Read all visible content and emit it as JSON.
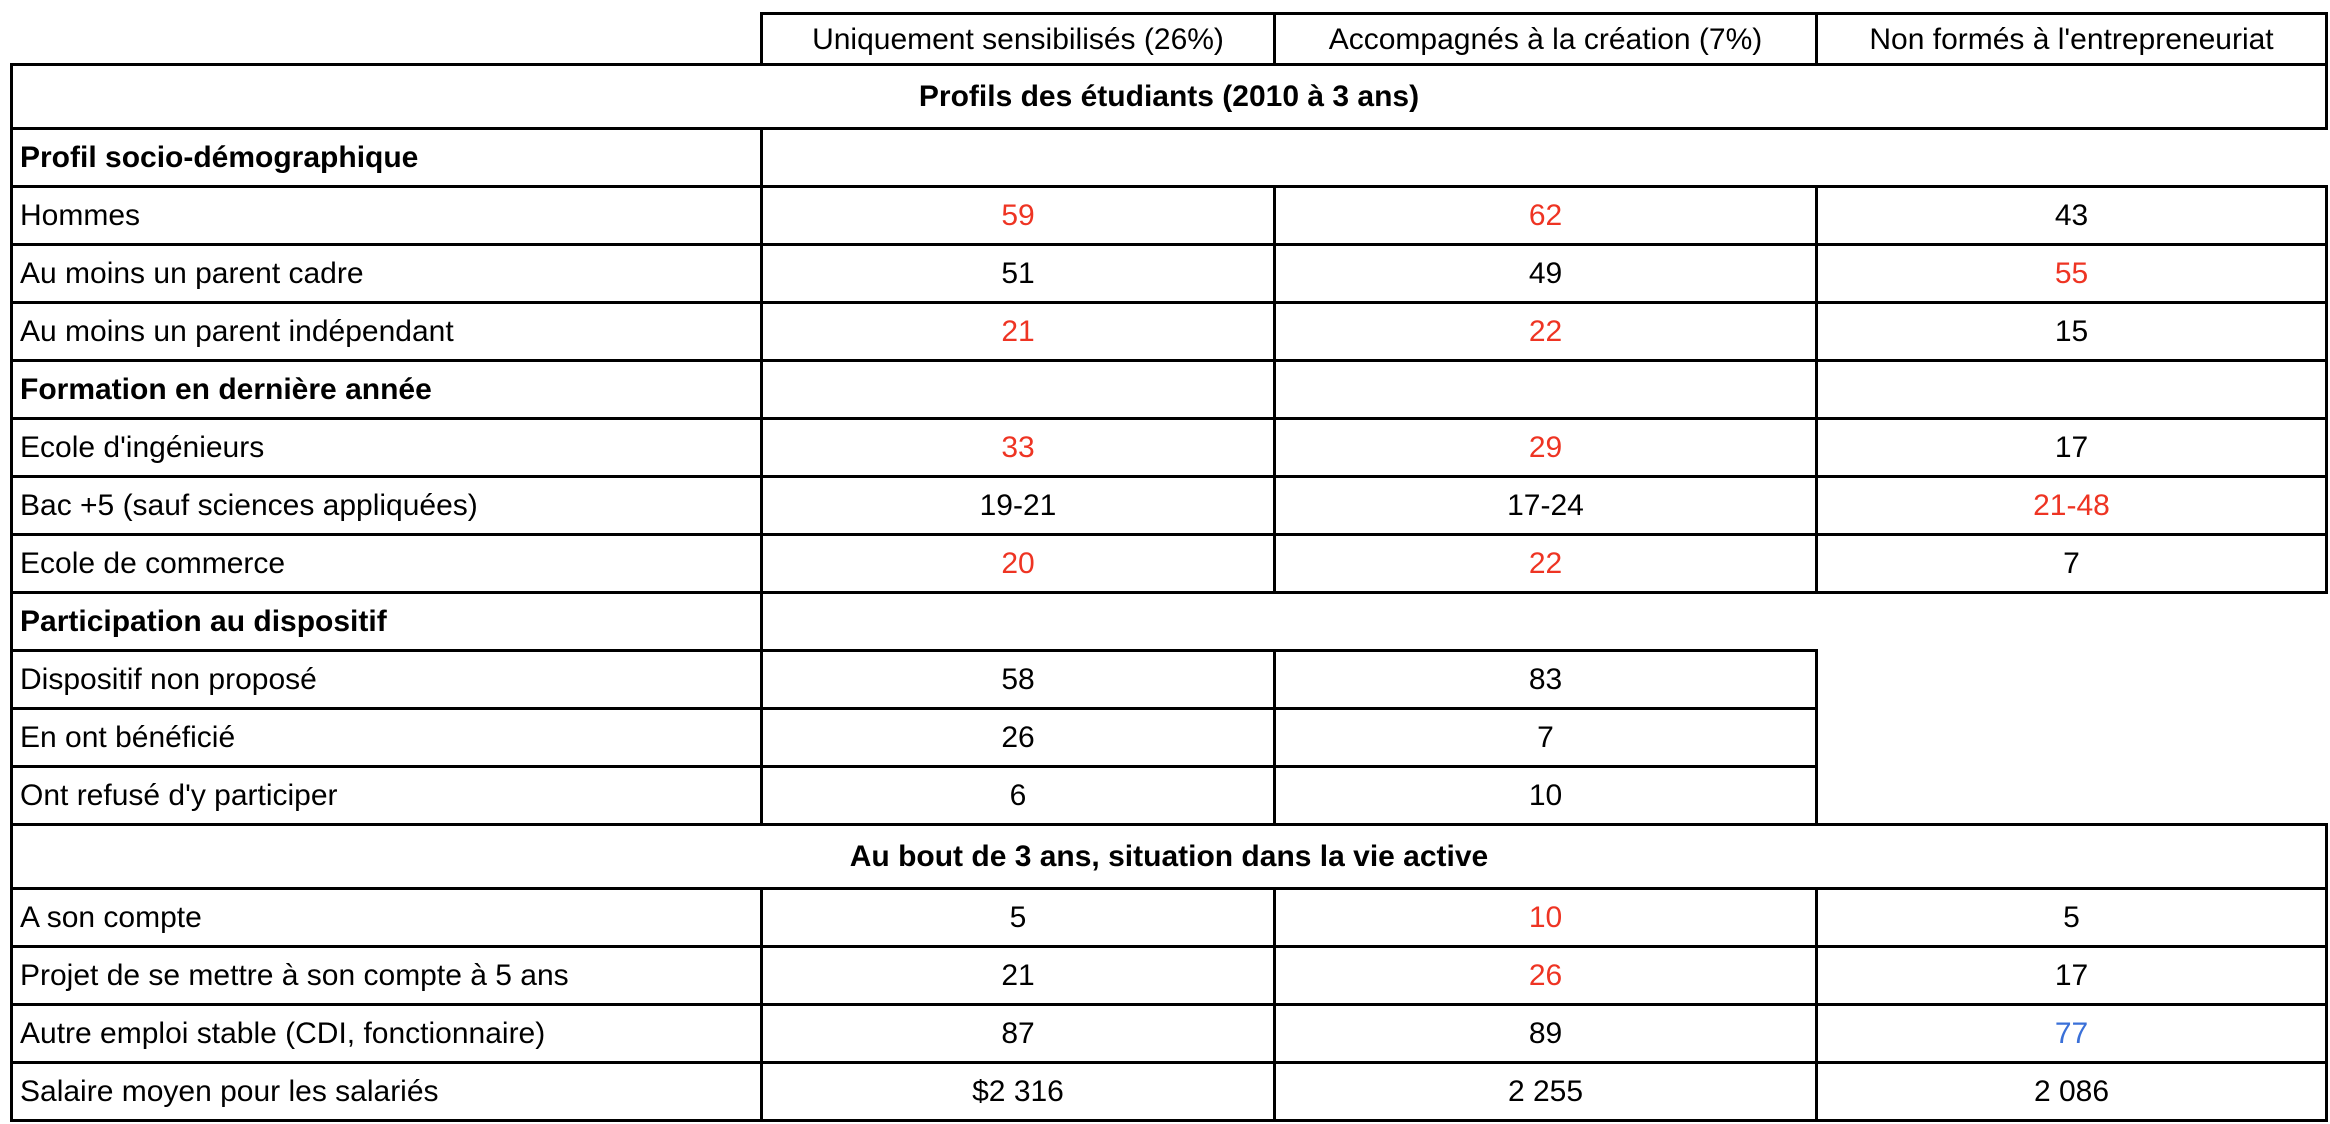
{
  "chart_data": {
    "type": "table",
    "title": "Profils des étudiants (2010 à 3 ans)",
    "column_headers": [
      "Uniquement sensibilisés (26%)",
      "Accompagnés à la création (7%)",
      "Non formés à l'entrepreneuriat"
    ],
    "body_rows": [
      {
        "type": "title",
        "text": "Profils des étudiants (2010 à 3 ans)"
      },
      {
        "type": "section",
        "label": "Profil socio-démographique",
        "data_area": "open"
      },
      {
        "type": "data",
        "label": "Hommes",
        "values": [
          {
            "text": "59",
            "color": "red"
          },
          {
            "text": "62",
            "color": "red"
          },
          {
            "text": "43"
          }
        ]
      },
      {
        "type": "data",
        "label": "Au moins un parent cadre",
        "values": [
          {
            "text": "51"
          },
          {
            "text": "49"
          },
          {
            "text": "55",
            "color": "red"
          }
        ]
      },
      {
        "type": "data",
        "label": "Au moins un parent indépendant",
        "values": [
          {
            "text": "21",
            "color": "red"
          },
          {
            "text": "22",
            "color": "red"
          },
          {
            "text": "15"
          }
        ]
      },
      {
        "type": "section",
        "label": "Formation en dernière année",
        "data_area": "bordered"
      },
      {
        "type": "data",
        "label": "Ecole d'ingénieurs",
        "values": [
          {
            "text": "33",
            "color": "red"
          },
          {
            "text": "29",
            "color": "red"
          },
          {
            "text": "17"
          }
        ]
      },
      {
        "type": "data",
        "label": "Bac +5 (sauf sciences appliquées)",
        "values": [
          {
            "text": "19-21"
          },
          {
            "text": "17-24"
          },
          {
            "text": "21-48",
            "color": "red"
          }
        ]
      },
      {
        "type": "data",
        "label": "Ecole de commerce",
        "values": [
          {
            "text": "20",
            "color": "red"
          },
          {
            "text": "22",
            "color": "red"
          },
          {
            "text": "7"
          }
        ]
      },
      {
        "type": "section",
        "label": "Participation au dispositif",
        "data_area": "open"
      },
      {
        "type": "data",
        "label": "Dispositif non proposé",
        "merged_tail": true,
        "values": [
          {
            "text": "58"
          },
          {
            "text": "83"
          }
        ]
      },
      {
        "type": "data",
        "label": "En ont bénéficié",
        "values": [
          {
            "text": "26"
          },
          {
            "text": "7"
          }
        ]
      },
      {
        "type": "data",
        "label": "Ont refusé d'y participer",
        "values": [
          {
            "text": "6"
          },
          {
            "text": "10"
          }
        ]
      },
      {
        "type": "title",
        "text": "Au bout de 3 ans, situation dans la vie active"
      },
      {
        "type": "data",
        "label": "A son compte",
        "values": [
          {
            "text": "5"
          },
          {
            "text": "10",
            "color": "red"
          },
          {
            "text": "5"
          }
        ]
      },
      {
        "type": "data",
        "label": "Projet de se mettre à son compte à 5 ans",
        "values": [
          {
            "text": "21"
          },
          {
            "text": "26",
            "color": "red"
          },
          {
            "text": "17"
          }
        ]
      },
      {
        "type": "data",
        "label": "Autre emploi stable (CDI, fonctionnaire)",
        "values": [
          {
            "text": "87"
          },
          {
            "text": "89"
          },
          {
            "text": "77",
            "color": "blue"
          }
        ]
      },
      {
        "type": "data",
        "label": "Salaire moyen pour les salariés",
        "values": [
          {
            "text": "$2 316"
          },
          {
            "text": "2 255"
          },
          {
            "text": "2 086"
          }
        ]
      }
    ]
  },
  "colors": {
    "value_red": "#EE3423",
    "value_blue": "#3A70D8",
    "border": "#000000",
    "background": "#FFFFFF"
  }
}
